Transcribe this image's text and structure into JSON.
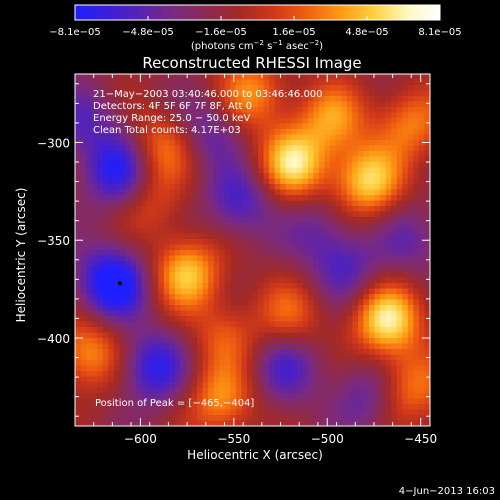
{
  "colorbar": {
    "ticks": [
      "-8.1e-05",
      "-4.8e-05",
      "-1.6e-05",
      "1.6e-05",
      "4.8e-05",
      "8.1e-05"
    ],
    "unit_label_parts": [
      "(photons cm",
      "-2",
      " s",
      "-1",
      " asec",
      "-2",
      ")"
    ],
    "stops": [
      "#1f1fff",
      "#3a1fd8",
      "#5a23b0",
      "#7a2a80",
      "#8c2a50",
      "#a52a24",
      "#d0381a",
      "#f06010",
      "#ff9a14",
      "#ffd040",
      "#fff8c0",
      "#ffffff"
    ]
  },
  "chart_data": {
    "type": "heatmap",
    "title": "Reconstructed RHESSI Image",
    "xlabel": "Heliocentric X (arcsec)",
    "ylabel": "Heliocentric Y (arcsec)",
    "xlim": [
      -635,
      -445
    ],
    "ylim": [
      -445,
      -265
    ],
    "xticks": [
      -600,
      -550,
      -500,
      -450
    ],
    "yticks": [
      -300,
      -350,
      -400
    ],
    "xtick_labels": [
      "−600",
      "−550",
      "−500",
      "−450"
    ],
    "ytick_labels": [
      "−300",
      "−350",
      "−400"
    ],
    "clim": [
      -8.1e-05,
      8.1e-05
    ],
    "info_lines": [
      "21−May−2003 03:40:46.000 to 03:46:46.000",
      "Detectors: 4F 5F 6F 7F 8F, Att 0",
      "Energy Range: 25.0 − 50.0 keV",
      "Clean    Total counts: 4.17E+03"
    ],
    "peak_label": "Position of Peak = [−465,−404]",
    "marker": {
      "x": -611,
      "y": -372
    },
    "blobs": [
      {
        "x": -468,
        "y": -391,
        "v": 0.95
      },
      {
        "x": -518,
        "y": -311,
        "v": 0.9
      },
      {
        "x": -478,
        "y": -320,
        "v": 0.85
      },
      {
        "x": -575,
        "y": -367,
        "v": 0.8
      },
      {
        "x": -540,
        "y": -275,
        "v": 0.6
      },
      {
        "x": -497,
        "y": -288,
        "v": 0.6
      },
      {
        "x": -455,
        "y": -290,
        "v": 0.55
      },
      {
        "x": -587,
        "y": -302,
        "v": 0.55
      },
      {
        "x": -628,
        "y": -408,
        "v": 0.65
      },
      {
        "x": -557,
        "y": -432,
        "v": 0.6
      },
      {
        "x": -455,
        "y": -425,
        "v": 0.55
      },
      {
        "x": -520,
        "y": -388,
        "v": 0.45
      },
      {
        "x": -555,
        "y": -400,
        "v": 0.4
      },
      {
        "x": -595,
        "y": -330,
        "v": 0.35
      },
      {
        "x": -615,
        "y": -372,
        "v": -0.95
      },
      {
        "x": -612,
        "y": -315,
        "v": -0.75
      },
      {
        "x": -593,
        "y": -415,
        "v": -0.7
      },
      {
        "x": -547,
        "y": -330,
        "v": -0.55
      },
      {
        "x": -522,
        "y": -415,
        "v": -0.5
      },
      {
        "x": -490,
        "y": -365,
        "v": -0.45
      },
      {
        "x": -565,
        "y": -295,
        "v": -0.45
      },
      {
        "x": -630,
        "y": -290,
        "v": -0.4
      },
      {
        "x": -505,
        "y": -345,
        "v": -0.35
      },
      {
        "x": -455,
        "y": -350,
        "v": -0.35
      },
      {
        "x": -480,
        "y": -430,
        "v": -0.4
      }
    ],
    "base_level": -0.2
  },
  "footer": {
    "timestamp": "4−Jun−2013 16:03"
  }
}
